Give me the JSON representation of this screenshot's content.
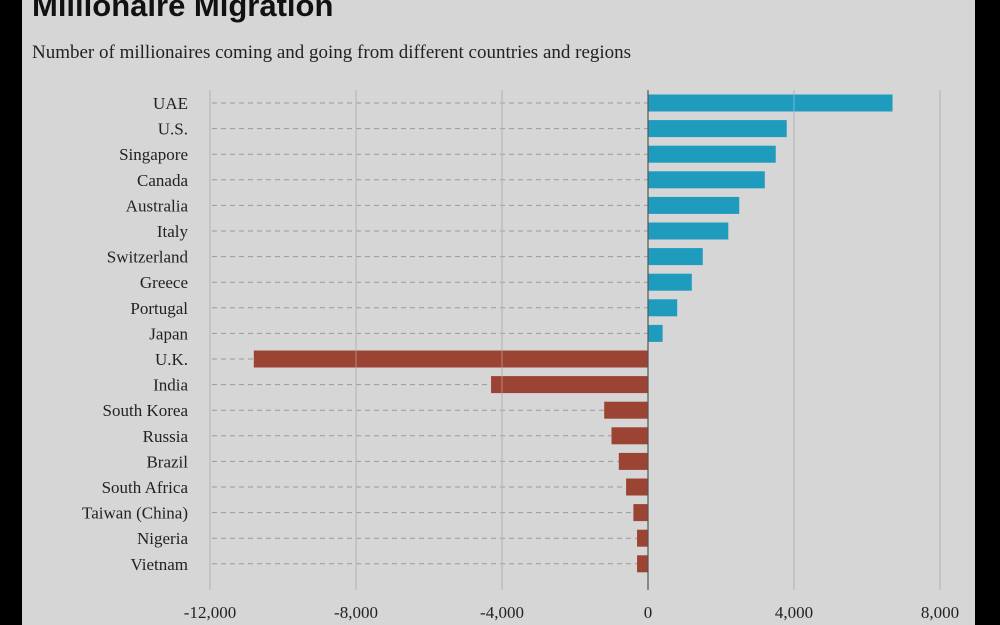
{
  "chart_data": {
    "type": "bar",
    "orientation": "horizontal",
    "title": "Millionaire Migration",
    "subtitle": "Number of millionaires coming and going from different countries and regions",
    "categories": [
      "UAE",
      "U.S.",
      "Singapore",
      "Canada",
      "Australia",
      "Italy",
      "Switzerland",
      "Greece",
      "Portugal",
      "Japan",
      "U.K.",
      "India",
      "South Korea",
      "Russia",
      "Brazil",
      "South Africa",
      "Taiwan (China)",
      "Nigeria",
      "Vietnam"
    ],
    "values": [
      6700,
      3800,
      3500,
      3200,
      2500,
      2200,
      1500,
      1200,
      800,
      400,
      -10800,
      -4300,
      -1200,
      -1000,
      -800,
      -600,
      -400,
      -300,
      -300
    ],
    "xlim": [
      -12000,
      8000
    ],
    "xticks": [
      -12000,
      -8000,
      -4000,
      0,
      4000,
      8000
    ],
    "xtick_labels": [
      "-12,000",
      "-8,000",
      "-4,000",
      "0",
      "4,000",
      "8,000"
    ],
    "colors": {
      "positive": "#1f9bbd",
      "negative": "#9b4433",
      "grid": "#8a8a8a",
      "dash": "#9a9a9a"
    },
    "grid": "vertical"
  }
}
